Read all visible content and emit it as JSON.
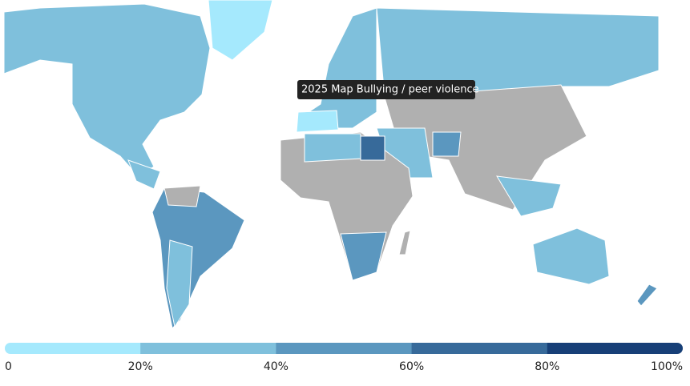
{
  "tooltip": "2025 Map Bullying / peer violence",
  "legend": {
    "colors": [
      "#a5e9fd",
      "#7fc0dc",
      "#5b97bf",
      "#376a9a",
      "#173f77"
    ],
    "range": [
      0,
      100
    ],
    "ticks": [
      0,
      {
        "value": 20,
        "label": "20%"
      },
      {
        "value": 40,
        "label": "40%"
      },
      {
        "value": 60,
        "label": "60%"
      },
      {
        "value": 80,
        "label": "80%"
      },
      {
        "value": 100,
        "label": "100%"
      }
    ]
  }
}
